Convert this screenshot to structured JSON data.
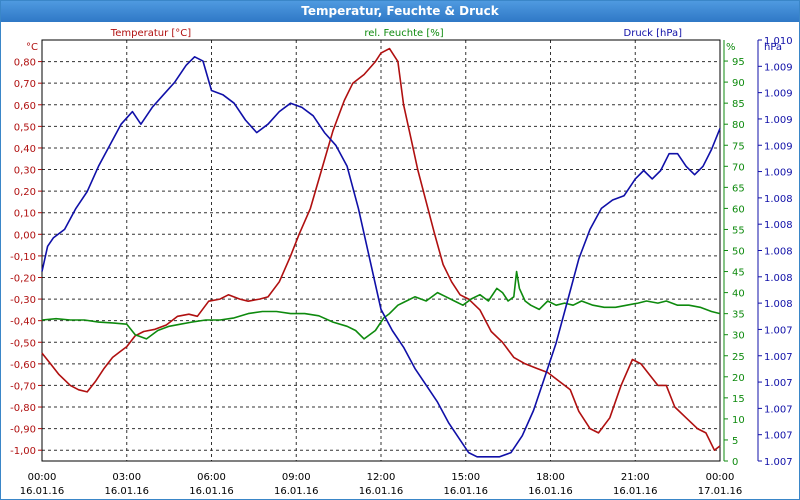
{
  "window": {
    "title": "Temperatur, Feuchte & Druck"
  },
  "chart_data": {
    "type": "line",
    "title": "Temperatur, Feuchte & Druck",
    "x_ticks": [
      {
        "time": "00:00",
        "date": "16.01.16"
      },
      {
        "time": "03:00",
        "date": "16.01.16"
      },
      {
        "time": "06:00",
        "date": "16.01.16"
      },
      {
        "time": "09:00",
        "date": "16.01.16"
      },
      {
        "time": "12:00",
        "date": "16.01.16"
      },
      {
        "time": "15:00",
        "date": "16.01.16"
      },
      {
        "time": "18:00",
        "date": "16.01.16"
      },
      {
        "time": "21:00",
        "date": "16.01.16"
      },
      {
        "time": "00:00",
        "date": "17.01.16"
      }
    ],
    "xlim": [
      0,
      24
    ],
    "grid": true,
    "axes": {
      "temp": {
        "unit": "°C",
        "ylim": [
          -1.05,
          0.9
        ],
        "ticks": [
          "0,80",
          "0,70",
          "0,60",
          "0,50",
          "0,40",
          "0,30",
          "0,20",
          "0,10",
          "0,00",
          "-0,10",
          "-0,20",
          "-0,30",
          "-0,40",
          "-0,50",
          "-0,60",
          "-0,70",
          "-0,80",
          "-0,90",
          "-1,00"
        ],
        "tick_values": [
          0.8,
          0.7,
          0.6,
          0.5,
          0.4,
          0.3,
          0.2,
          0.1,
          0.0,
          -0.1,
          -0.2,
          -0.3,
          -0.4,
          -0.5,
          -0.6,
          -0.7,
          -0.8,
          -0.9,
          -1.0
        ]
      },
      "humidity": {
        "unit": "%",
        "ylim": [
          0,
          100
        ],
        "ticks": [
          "95",
          "90",
          "85",
          "80",
          "75",
          "70",
          "65",
          "60",
          "55",
          "50",
          "45",
          "40",
          "35",
          "30",
          "25",
          "20",
          "15",
          "10",
          "5",
          "0"
        ],
        "tick_values": [
          95,
          90,
          85,
          80,
          75,
          70,
          65,
          60,
          55,
          50,
          45,
          40,
          35,
          30,
          25,
          20,
          15,
          10,
          5,
          0
        ]
      },
      "pressure": {
        "unit": "hPa",
        "ylim": [
          0,
          100
        ],
        "ticks": [
          "1.010",
          "1.009",
          "1.009",
          "1.009",
          "1.009",
          "1.009",
          "1.008",
          "1.008",
          "1.008",
          "1.008",
          "1.008",
          "1.007",
          "1.007",
          "1.007",
          "1.007",
          "1.007",
          "1.007"
        ],
        "tick_values": [
          100,
          93.75,
          87.5,
          81.25,
          75,
          68.75,
          62.5,
          56.25,
          50,
          43.75,
          37.5,
          31.25,
          25,
          18.75,
          12.5,
          6.25,
          0
        ]
      }
    },
    "series": [
      {
        "name": "Temperatur [°C]",
        "axis": "temp",
        "color": "#b01010",
        "x": [
          0,
          0.3,
          0.6,
          1.0,
          1.3,
          1.6,
          1.9,
          2.2,
          2.5,
          2.8,
          3.0,
          3.3,
          3.6,
          4.0,
          4.4,
          4.8,
          5.2,
          5.5,
          5.9,
          6.3,
          6.6,
          7.0,
          7.3,
          7.7,
          8.0,
          8.4,
          8.8,
          9.1,
          9.5,
          9.9,
          10.3,
          10.7,
          11.0,
          11.4,
          11.8,
          12.0,
          12.3,
          12.6,
          12.8,
          13.1,
          13.3,
          13.6,
          13.9,
          14.2,
          14.5,
          14.8,
          15.1,
          15.5,
          15.9,
          16.3,
          16.7,
          17.1,
          17.5,
          17.9,
          18.3,
          18.7,
          19.0,
          19.4,
          19.7,
          20.1,
          20.5,
          20.9,
          21.2,
          21.5,
          21.8,
          22.1,
          22.4,
          22.8,
          23.2,
          23.5,
          23.8,
          24.0
        ],
        "values": [
          -0.55,
          -0.6,
          -0.65,
          -0.7,
          -0.72,
          -0.73,
          -0.68,
          -0.62,
          -0.57,
          -0.54,
          -0.52,
          -0.47,
          -0.45,
          -0.44,
          -0.42,
          -0.38,
          -0.37,
          -0.38,
          -0.31,
          -0.3,
          -0.28,
          -0.3,
          -0.31,
          -0.3,
          -0.29,
          -0.22,
          -0.1,
          0.0,
          0.12,
          0.3,
          0.48,
          0.62,
          0.7,
          0.74,
          0.8,
          0.84,
          0.86,
          0.8,
          0.6,
          0.42,
          0.3,
          0.15,
          0.0,
          -0.14,
          -0.22,
          -0.28,
          -0.3,
          -0.35,
          -0.45,
          -0.5,
          -0.57,
          -0.6,
          -0.62,
          -0.64,
          -0.68,
          -0.72,
          -0.82,
          -0.9,
          -0.92,
          -0.85,
          -0.7,
          -0.58,
          -0.6,
          -0.65,
          -0.7,
          -0.7,
          -0.8,
          -0.85,
          -0.9,
          -0.92,
          -1.0,
          -0.98
        ]
      },
      {
        "name": "rel. Feuchte [%]",
        "axis": "humidity",
        "color": "#0e8a0e",
        "x": [
          0,
          0.5,
          1.0,
          1.5,
          2.0,
          2.5,
          3.0,
          3.3,
          3.7,
          4.1,
          4.5,
          4.9,
          5.3,
          5.8,
          6.3,
          6.8,
          7.3,
          7.8,
          8.3,
          8.8,
          9.3,
          9.8,
          10.3,
          10.8,
          11.1,
          11.4,
          11.8,
          12.1,
          12.3,
          12.6,
          12.9,
          13.2,
          13.6,
          14.0,
          14.3,
          14.6,
          14.9,
          15.2,
          15.5,
          15.8,
          16.1,
          16.3,
          16.5,
          16.7,
          16.8,
          16.9,
          17.1,
          17.3,
          17.6,
          17.9,
          18.2,
          18.5,
          18.8,
          19.1,
          19.5,
          19.9,
          20.3,
          20.7,
          21.1,
          21.4,
          21.8,
          22.1,
          22.5,
          22.9,
          23.3,
          23.7,
          24.0
        ],
        "values": [
          33.5,
          33.8,
          33.5,
          33.5,
          33.0,
          32.8,
          32.5,
          30.0,
          29.0,
          31.0,
          32.0,
          32.5,
          33.0,
          33.5,
          33.5,
          34.0,
          35.0,
          35.5,
          35.5,
          35.0,
          35.0,
          34.5,
          33.0,
          32.0,
          31.0,
          29.0,
          31.0,
          34.0,
          35.0,
          37.0,
          38.0,
          39.0,
          38.0,
          40.0,
          39.0,
          38.0,
          37.0,
          38.5,
          39.5,
          38.0,
          41.0,
          40.0,
          38.0,
          39.0,
          45.0,
          41.0,
          38.0,
          37.0,
          36.0,
          38.0,
          37.0,
          37.5,
          37.0,
          38.0,
          37.0,
          36.5,
          36.5,
          37.0,
          37.5,
          38.0,
          37.5,
          38.0,
          37.0,
          37.0,
          36.5,
          35.5,
          35.0
        ]
      },
      {
        "name": "Druck [hPa]",
        "axis": "pressure",
        "color": "#1010a8",
        "x": [
          0,
          0.2,
          0.4,
          0.8,
          1.2,
          1.6,
          2.0,
          2.4,
          2.8,
          3.2,
          3.5,
          3.9,
          4.3,
          4.7,
          5.1,
          5.4,
          5.7,
          6.0,
          6.4,
          6.8,
          7.2,
          7.6,
          8.0,
          8.4,
          8.8,
          9.2,
          9.6,
          10.0,
          10.4,
          10.8,
          11.2,
          11.6,
          12.0,
          12.4,
          12.8,
          13.2,
          13.6,
          14.0,
          14.4,
          14.8,
          15.1,
          15.4,
          15.8,
          16.2,
          16.6,
          17.0,
          17.4,
          17.8,
          18.2,
          18.6,
          19.0,
          19.4,
          19.8,
          20.2,
          20.6,
          21.0,
          21.3,
          21.6,
          21.9,
          22.2,
          22.5,
          22.8,
          23.1,
          23.4,
          23.7,
          24.0
        ],
        "values": [
          45.0,
          51.0,
          53.0,
          55.0,
          60.0,
          64.0,
          70.0,
          75.0,
          80.0,
          83.0,
          80.0,
          84.0,
          87.0,
          90.0,
          94.0,
          96.0,
          95.0,
          88.0,
          87.0,
          85.0,
          81.0,
          78.0,
          80.0,
          83.0,
          85.0,
          84.0,
          82.0,
          78.0,
          75.0,
          70.0,
          60.0,
          48.0,
          36.0,
          31.0,
          27.0,
          22.0,
          18.0,
          14.0,
          9.0,
          5.0,
          2.0,
          1.0,
          1.0,
          1.0,
          2.0,
          6.0,
          12.0,
          20.0,
          28.0,
          38.0,
          48.0,
          55.0,
          60.0,
          62.0,
          63.0,
          67.0,
          69.0,
          67.0,
          69.0,
          73.0,
          73.0,
          70.0,
          68.0,
          70.0,
          74.0,
          79.0
        ]
      }
    ],
    "legend": [
      {
        "label": "Temperatur [°C]",
        "color": "#b01010"
      },
      {
        "label": "rel. Feuchte [%]",
        "color": "#0e8a0e"
      },
      {
        "label": "Druck [hPa]",
        "color": "#1010a8"
      }
    ]
  }
}
